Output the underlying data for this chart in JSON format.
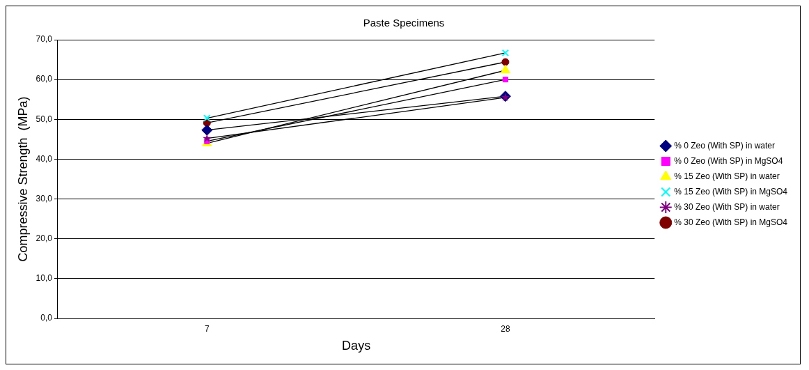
{
  "chart_data": {
    "type": "line",
    "title": "Paste Specimens",
    "xlabel": "Days",
    "ylabel": "Compressive Strength  (MPa)",
    "categories": [
      "7",
      "28"
    ],
    "ylim": [
      0,
      70
    ],
    "yticks": [
      {
        "value": 0,
        "label": "0,0"
      },
      {
        "value": 10,
        "label": "10,0"
      },
      {
        "value": 20,
        "label": "20,0"
      },
      {
        "value": 30,
        "label": "30,0"
      },
      {
        "value": 40,
        "label": "40,0"
      },
      {
        "value": 50,
        "label": "50,0"
      },
      {
        "value": 60,
        "label": "60,0"
      },
      {
        "value": 70,
        "label": "70,0"
      }
    ],
    "grid": "y",
    "legend": "right",
    "line_style": "solid",
    "series": [
      {
        "name": "% 0 Zeo (With SP) in water",
        "color": "#000080",
        "marker": "diamond",
        "values": [
          47.3,
          55.8
        ]
      },
      {
        "name": "% 0 Zeo (With SP) in MgSO4",
        "color": "#ff00ff",
        "marker": "square",
        "values": [
          44.5,
          60.0
        ]
      },
      {
        "name": "% 15 Zeo (With SP) in water",
        "color": "#ffff00",
        "marker": "triangle",
        "values": [
          44.0,
          62.3
        ]
      },
      {
        "name": "% 15 Zeo (With SP) in MgSO4",
        "color": "#00ffff",
        "marker": "cross",
        "values": [
          50.3,
          66.7
        ]
      },
      {
        "name": "% 30 Zeo (With SP) in water",
        "color": "#800080",
        "marker": "star",
        "values": [
          45.2,
          55.5
        ]
      },
      {
        "name": "% 30 Zeo (With SP) in MgSO4",
        "color": "#800000",
        "marker": "circle",
        "values": [
          49.1,
          64.4
        ]
      }
    ]
  }
}
